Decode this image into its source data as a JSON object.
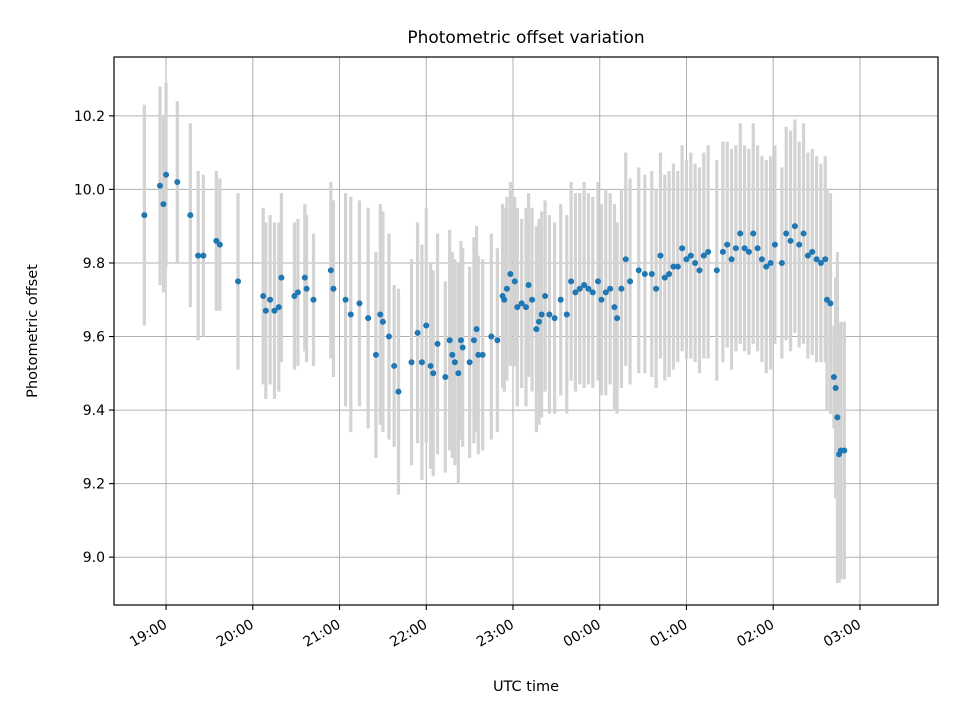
{
  "chart_data": {
    "type": "scatter",
    "title": "Photometric offset variation",
    "xlabel": "UTC time",
    "ylabel": "Photometric offset",
    "x_unit": "hours (UTC clock)",
    "xlim": [
      18.4,
      27.9
    ],
    "ylim": [
      8.87,
      10.36
    ],
    "x_ticks": [
      {
        "value": 19,
        "label": "19:00"
      },
      {
        "value": 20,
        "label": "20:00"
      },
      {
        "value": 21,
        "label": "21:00"
      },
      {
        "value": 22,
        "label": "22:00"
      },
      {
        "value": 23,
        "label": "23:00"
      },
      {
        "value": 24,
        "label": "00:00"
      },
      {
        "value": 25,
        "label": "01:00"
      },
      {
        "value": 26,
        "label": "02:00"
      },
      {
        "value": 27,
        "label": "03:00"
      }
    ],
    "y_ticks": [
      {
        "value": 9.0,
        "label": "9.0"
      },
      {
        "value": 9.2,
        "label": "9.2"
      },
      {
        "value": 9.4,
        "label": "9.4"
      },
      {
        "value": 9.6,
        "label": "9.6"
      },
      {
        "value": 9.8,
        "label": "9.8"
      },
      {
        "value": 10.0,
        "label": "10.0"
      },
      {
        "value": 10.2,
        "label": "10.2"
      }
    ],
    "grid": true,
    "legend": "none",
    "colors": {
      "points": "#1f77b4",
      "errorbars": "#d3d3d3",
      "grid": "#b0b0b0"
    },
    "series": [
      {
        "values": [
          [
            18.75,
            9.93,
            0.3
          ],
          [
            18.93,
            10.01,
            0.27
          ],
          [
            18.97,
            9.96,
            0.24
          ],
          [
            19.0,
            10.04,
            0.25
          ],
          [
            19.13,
            10.02,
            0.22
          ],
          [
            19.28,
            9.93,
            0.25
          ],
          [
            19.37,
            9.82,
            0.23
          ],
          [
            19.43,
            9.82,
            0.22
          ],
          [
            19.58,
            9.86,
            0.19
          ],
          [
            19.62,
            9.85,
            0.18
          ],
          [
            19.83,
            9.75,
            0.24
          ],
          [
            20.12,
            9.71,
            0.24
          ],
          [
            20.15,
            9.67,
            0.24
          ],
          [
            20.2,
            9.7,
            0.23
          ],
          [
            20.25,
            9.67,
            0.24
          ],
          [
            20.3,
            9.68,
            0.23
          ],
          [
            20.33,
            9.76,
            0.23
          ],
          [
            20.48,
            9.71,
            0.2
          ],
          [
            20.52,
            9.72,
            0.2
          ],
          [
            20.6,
            9.76,
            0.2
          ],
          [
            20.62,
            9.73,
            0.2
          ],
          [
            20.7,
            9.7,
            0.18
          ],
          [
            20.9,
            9.78,
            0.24
          ],
          [
            20.93,
            9.73,
            0.24
          ],
          [
            21.07,
            9.7,
            0.29
          ],
          [
            21.13,
            9.66,
            0.32
          ],
          [
            21.23,
            9.69,
            0.28
          ],
          [
            21.33,
            9.65,
            0.3
          ],
          [
            21.42,
            9.55,
            0.28
          ],
          [
            21.47,
            9.66,
            0.3
          ],
          [
            21.5,
            9.64,
            0.3
          ],
          [
            21.57,
            9.6,
            0.28
          ],
          [
            21.63,
            9.52,
            0.22
          ],
          [
            21.68,
            9.45,
            0.28
          ],
          [
            21.83,
            9.53,
            0.28
          ],
          [
            21.9,
            9.61,
            0.3
          ],
          [
            21.95,
            9.53,
            0.32
          ],
          [
            22.0,
            9.63,
            0.32
          ],
          [
            22.05,
            9.52,
            0.28
          ],
          [
            22.08,
            9.5,
            0.28
          ],
          [
            22.13,
            9.58,
            0.3
          ],
          [
            22.22,
            9.49,
            0.26
          ],
          [
            22.27,
            9.59,
            0.3
          ],
          [
            22.3,
            9.55,
            0.28
          ],
          [
            22.33,
            9.53,
            0.28
          ],
          [
            22.37,
            9.5,
            0.3
          ],
          [
            22.4,
            9.59,
            0.27
          ],
          [
            22.42,
            9.57,
            0.27
          ],
          [
            22.5,
            9.53,
            0.26
          ],
          [
            22.55,
            9.59,
            0.28
          ],
          [
            22.58,
            9.62,
            0.28
          ],
          [
            22.6,
            9.55,
            0.27
          ],
          [
            22.65,
            9.55,
            0.26
          ],
          [
            22.75,
            9.6,
            0.28
          ],
          [
            22.82,
            9.59,
            0.25
          ],
          [
            22.88,
            9.71,
            0.25
          ],
          [
            22.9,
            9.7,
            0.25
          ],
          [
            22.93,
            9.73,
            0.25
          ],
          [
            22.97,
            9.77,
            0.25
          ],
          [
            23.02,
            9.75,
            0.23
          ],
          [
            23.05,
            9.68,
            0.27
          ],
          [
            23.1,
            9.69,
            0.23
          ],
          [
            23.15,
            9.68,
            0.27
          ],
          [
            23.18,
            9.74,
            0.25
          ],
          [
            23.22,
            9.7,
            0.25
          ],
          [
            23.27,
            9.62,
            0.28
          ],
          [
            23.3,
            9.64,
            0.28
          ],
          [
            23.33,
            9.66,
            0.28
          ],
          [
            23.37,
            9.71,
            0.26
          ],
          [
            23.42,
            9.66,
            0.27
          ],
          [
            23.48,
            9.65,
            0.26
          ],
          [
            23.55,
            9.7,
            0.26
          ],
          [
            23.62,
            9.66,
            0.27
          ],
          [
            23.67,
            9.75,
            0.27
          ],
          [
            23.72,
            9.72,
            0.27
          ],
          [
            23.77,
            9.73,
            0.26
          ],
          [
            23.82,
            9.74,
            0.28
          ],
          [
            23.87,
            9.73,
            0.26
          ],
          [
            23.92,
            9.72,
            0.26
          ],
          [
            23.98,
            9.75,
            0.27
          ],
          [
            24.02,
            9.7,
            0.26
          ],
          [
            24.07,
            9.72,
            0.28
          ],
          [
            24.12,
            9.73,
            0.26
          ],
          [
            24.17,
            9.68,
            0.28
          ],
          [
            24.2,
            9.65,
            0.26
          ],
          [
            24.25,
            9.73,
            0.27
          ],
          [
            24.3,
            9.81,
            0.29
          ],
          [
            24.35,
            9.75,
            0.28
          ],
          [
            24.45,
            9.78,
            0.28
          ],
          [
            24.52,
            9.77,
            0.27
          ],
          [
            24.6,
            9.77,
            0.28
          ],
          [
            24.65,
            9.73,
            0.27
          ],
          [
            24.7,
            9.82,
            0.28
          ],
          [
            24.75,
            9.76,
            0.28
          ],
          [
            24.8,
            9.77,
            0.28
          ],
          [
            24.85,
            9.79,
            0.28
          ],
          [
            24.9,
            9.79,
            0.26
          ],
          [
            24.95,
            9.84,
            0.28
          ],
          [
            25.0,
            9.81,
            0.27
          ],
          [
            25.05,
            9.82,
            0.28
          ],
          [
            25.1,
            9.8,
            0.27
          ],
          [
            25.15,
            9.78,
            0.28
          ],
          [
            25.2,
            9.82,
            0.28
          ],
          [
            25.25,
            9.83,
            0.29
          ],
          [
            25.35,
            9.78,
            0.3
          ],
          [
            25.42,
            9.83,
            0.3
          ],
          [
            25.47,
            9.85,
            0.28
          ],
          [
            25.52,
            9.81,
            0.3
          ],
          [
            25.57,
            9.84,
            0.28
          ],
          [
            25.62,
            9.88,
            0.3
          ],
          [
            25.67,
            9.84,
            0.28
          ],
          [
            25.72,
            9.83,
            0.28
          ],
          [
            25.77,
            9.88,
            0.3
          ],
          [
            25.82,
            9.84,
            0.28
          ],
          [
            25.87,
            9.81,
            0.28
          ],
          [
            25.92,
            9.79,
            0.29
          ],
          [
            25.97,
            9.8,
            0.29
          ],
          [
            26.02,
            9.85,
            0.27
          ],
          [
            26.1,
            9.8,
            0.26
          ],
          [
            26.15,
            9.88,
            0.29
          ],
          [
            26.2,
            9.86,
            0.3
          ],
          [
            26.25,
            9.9,
            0.29
          ],
          [
            26.3,
            9.85,
            0.28
          ],
          [
            26.35,
            9.88,
            0.3
          ],
          [
            26.4,
            9.82,
            0.28
          ],
          [
            26.45,
            9.83,
            0.28
          ],
          [
            26.5,
            9.81,
            0.28
          ],
          [
            26.55,
            9.8,
            0.27
          ],
          [
            26.6,
            9.81,
            0.28
          ],
          [
            26.62,
            9.7,
            0.3
          ],
          [
            26.66,
            9.69,
            0.3
          ],
          [
            26.7,
            9.49,
            0.14
          ],
          [
            26.72,
            9.46,
            0.3
          ],
          [
            26.74,
            9.38,
            0.45
          ],
          [
            26.76,
            9.28,
            0.35
          ],
          [
            26.78,
            9.29,
            0.35
          ],
          [
            26.82,
            9.29,
            0.35
          ]
        ]
      }
    ]
  }
}
